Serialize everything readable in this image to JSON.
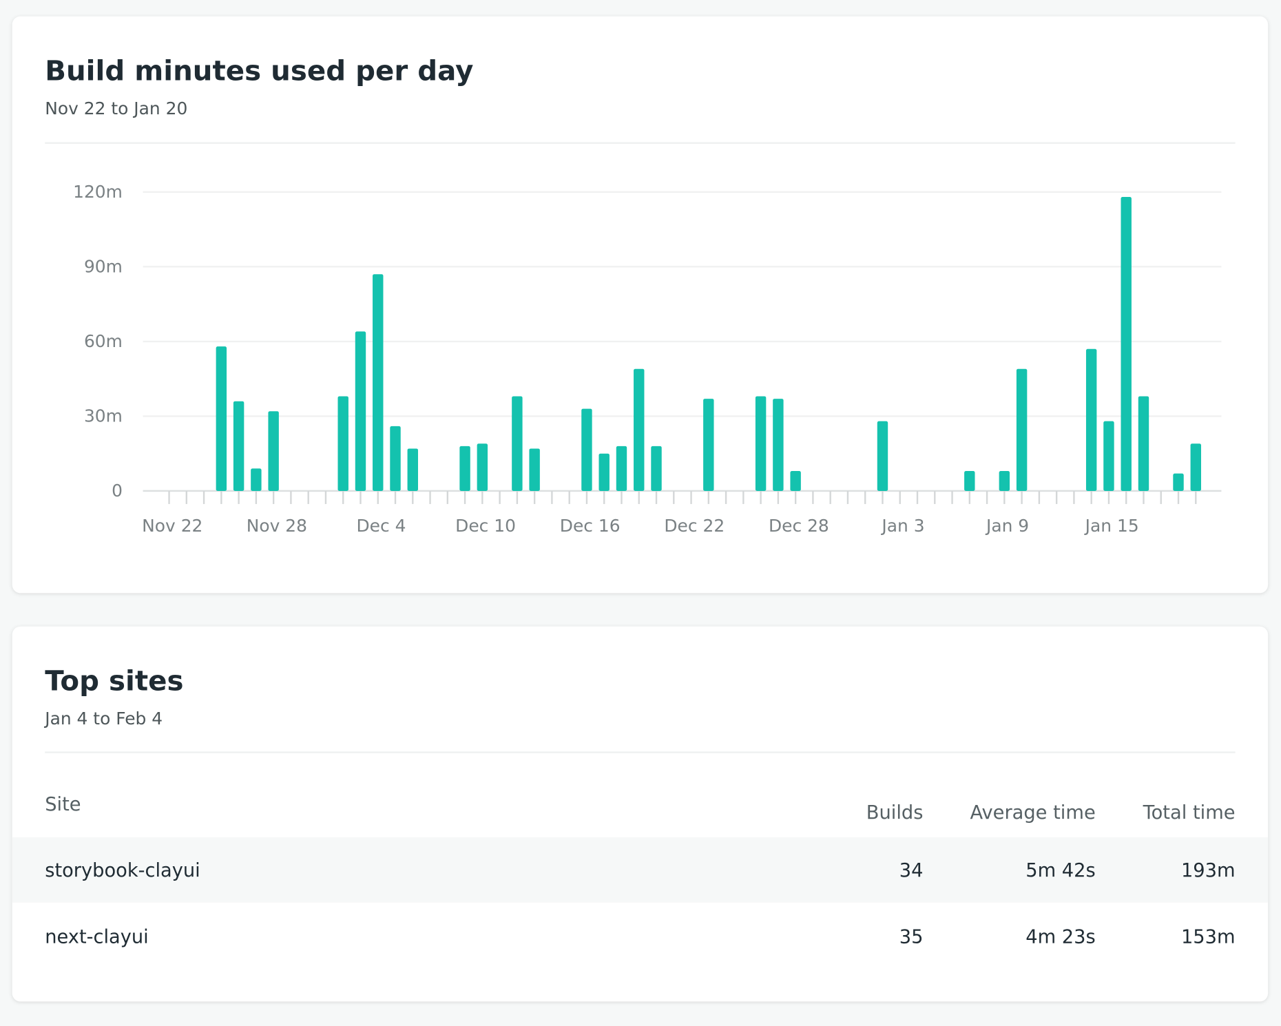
{
  "chart_data": {
    "type": "bar",
    "title": "Build minutes used per day",
    "subtitle": "Nov 22 to Jan 20",
    "categories": [
      "Nov 22",
      null,
      null,
      null,
      null,
      null,
      "Nov 28",
      null,
      null,
      null,
      null,
      null,
      "Dec 4",
      null,
      null,
      null,
      null,
      null,
      "Dec 10",
      null,
      null,
      null,
      null,
      null,
      "Dec 16",
      null,
      null,
      null,
      null,
      null,
      "Dec 22",
      null,
      null,
      null,
      null,
      null,
      "Dec 28",
      null,
      null,
      null,
      null,
      null,
      "Jan 3",
      null,
      null,
      null,
      null,
      null,
      "Jan 9",
      null,
      null,
      null,
      null,
      null,
      "Jan 15",
      null,
      null,
      null,
      null,
      null
    ],
    "values": [
      0,
      0,
      0,
      58,
      36,
      9,
      32,
      0,
      0,
      0,
      38,
      64,
      87,
      26,
      17,
      0,
      0,
      18,
      19,
      0,
      38,
      17,
      0,
      0,
      33,
      15,
      18,
      49,
      18,
      0,
      0,
      37,
      0,
      0,
      38,
      37,
      8,
      0,
      0,
      0,
      0,
      28,
      0,
      0,
      0,
      0,
      8,
      0,
      8,
      49,
      0,
      0,
      0,
      57,
      28,
      118,
      38,
      0,
      7,
      19
    ],
    "color": "#14c2ae",
    "ylim": [
      0,
      120
    ],
    "yticks": [
      0,
      {
        "value": 30,
        "label": "30m"
      },
      {
        "value": 60,
        "label": "60m"
      },
      {
        "value": 90,
        "label": "90m"
      },
      {
        "value": 120,
        "label": "120m"
      }
    ],
    "grid": true
  },
  "top_sites": {
    "title": "Top sites",
    "subtitle": "Jan 4 to Feb 4",
    "columns": [
      "Site",
      "Builds",
      "Average time",
      "Total time"
    ],
    "rows": [
      [
        "storybook-clayui",
        34,
        "5m 42s",
        "193m"
      ],
      [
        "next-clayui",
        35,
        "4m 23s",
        "153m"
      ]
    ]
  }
}
